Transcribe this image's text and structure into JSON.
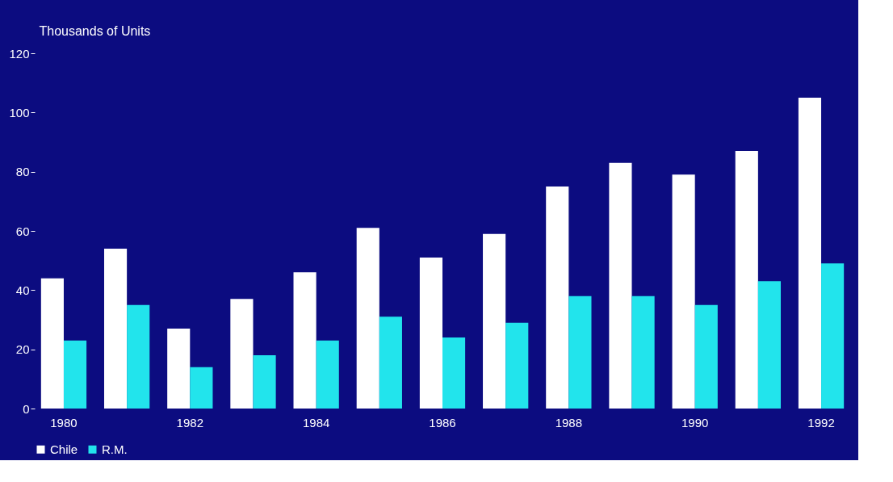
{
  "chart_data": {
    "type": "bar",
    "ylabel": "Thousands of Units",
    "categories": [
      "1980",
      null,
      "1982",
      null,
      "1984",
      null,
      "1986",
      null,
      "1988",
      null,
      "1990",
      null,
      "1992"
    ],
    "series": [
      {
        "name": "Chile",
        "color": "#ffffff",
        "values": [
          44,
          54,
          27,
          37,
          46,
          61,
          51,
          59,
          75,
          83,
          79,
          87,
          105
        ]
      },
      {
        "name": "R.M.",
        "color": "#22e4ec",
        "values": [
          23,
          35,
          14,
          18,
          23,
          31,
          24,
          29,
          38,
          38,
          35,
          43,
          49
        ]
      }
    ],
    "ylim": [
      0,
      120
    ],
    "yticks": [
      0,
      20,
      40,
      60,
      80,
      100,
      120
    ],
    "grid": false,
    "legend": "bottom"
  }
}
